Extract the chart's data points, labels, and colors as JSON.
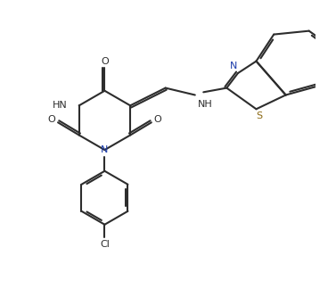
{
  "bg_color": "#ffffff",
  "line_color": "#2d2d2d",
  "n_color": "#1a3aaa",
  "s_color": "#8b6914",
  "figsize": [
    3.77,
    3.33
  ],
  "dpi": 100,
  "bond_width": 1.5,
  "xlim": [
    -0.3,
    3.9
  ],
  "ylim": [
    -1.2,
    3.0
  ]
}
